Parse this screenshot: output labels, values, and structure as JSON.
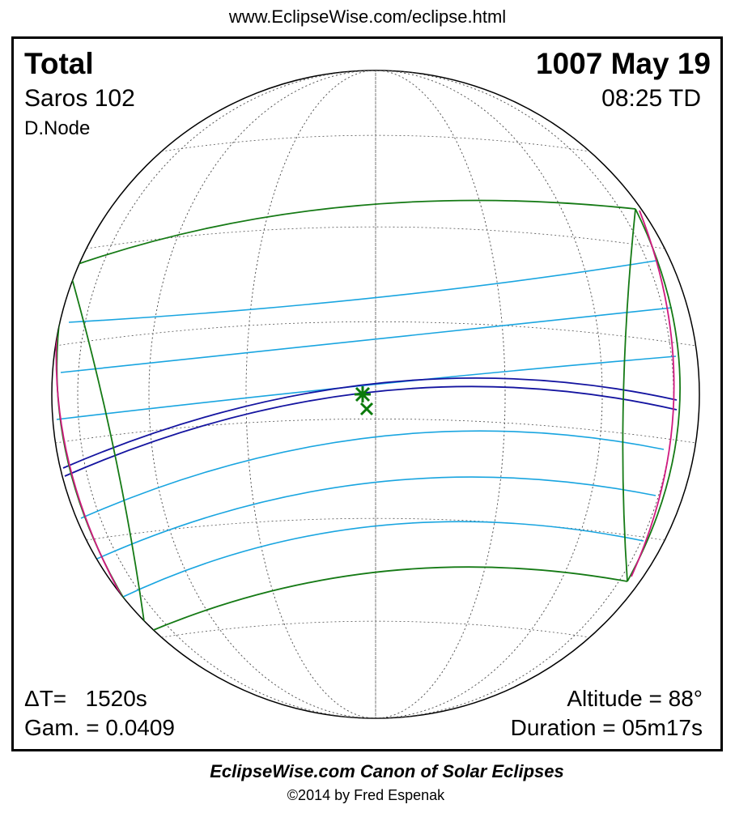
{
  "header": {
    "url": "www.EclipseWise.com/eclipse.html"
  },
  "info": {
    "type": "Total",
    "date": "1007 May 19",
    "saros": "Saros 102",
    "time": "08:25 TD",
    "node": "D.Node",
    "delta_t": "ΔT=   1520s",
    "gamma": "Gam. = 0.0409",
    "altitude": "Altitude = 88°",
    "duration": "Duration = 05m17s"
  },
  "footer": {
    "title": "EclipseWise.com Canon of Solar Eclipses",
    "credit": "©2014 by Fred Espenak"
  }
}
